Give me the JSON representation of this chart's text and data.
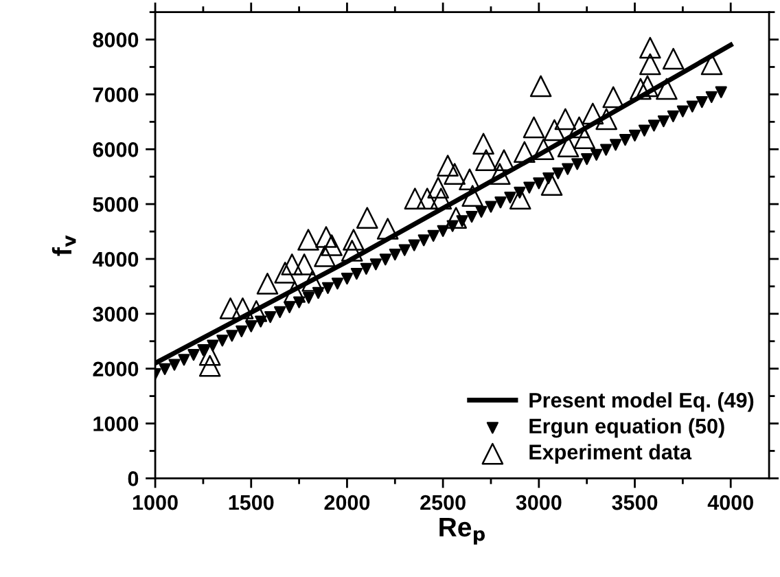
{
  "chart_data": {
    "type": "scatter",
    "xlabel": "Re$_{p}$",
    "ylabel": "f$_{v}$",
    "xlim": [
      1000,
      4200
    ],
    "ylim": [
      0,
      8500
    ],
    "xticks": [
      1000,
      1500,
      2000,
      2500,
      3000,
      3500,
      4000
    ],
    "yticks": [
      0,
      1000,
      2000,
      3000,
      4000,
      5000,
      6000,
      7000,
      8000
    ],
    "grid": false,
    "legend": "bottom right",
    "series": [
      {
        "name": "Present model Eq. (49)",
        "type": "line",
        "color": "#000000",
        "marker": "none",
        "line_style": "solid",
        "x": [
          1000,
          2000,
          3000,
          4000
        ],
        "values": [
          2100,
          3950,
          5900,
          7900
        ]
      },
      {
        "name": "Ergun equation (50)",
        "color": "#000000",
        "marker": "triangle_down",
        "x": [
          1000,
          1050,
          1100,
          1150,
          1200,
          1250,
          1300,
          1350,
          1400,
          1450,
          1500,
          1550,
          1600,
          1650,
          1700,
          1750,
          1800,
          1850,
          1900,
          1950,
          2000,
          2050,
          2100,
          2150,
          2200,
          2250,
          2300,
          2350,
          2400,
          2450,
          2500,
          2550,
          2600,
          2650,
          2700,
          2750,
          2800,
          2850,
          2900,
          2950,
          3000,
          3050,
          3100,
          3150,
          3200,
          3250,
          3300,
          3350,
          3400,
          3450,
          3500,
          3550,
          3600,
          3650,
          3700,
          3750,
          3800,
          3850,
          3900,
          3950
        ],
        "values": [
          1900,
          1990,
          2070,
          2160,
          2250,
          2340,
          2420,
          2510,
          2600,
          2680,
          2770,
          2860,
          2940,
          3030,
          3120,
          3210,
          3290,
          3380,
          3470,
          3550,
          3640,
          3730,
          3820,
          3900,
          3990,
          4080,
          4160,
          4250,
          4340,
          4420,
          4510,
          4600,
          4690,
          4770,
          4860,
          4950,
          5030,
          5120,
          5210,
          5300,
          5380,
          5470,
          5560,
          5640,
          5730,
          5820,
          5900,
          5990,
          6080,
          6170,
          6250,
          6340,
          6430,
          6510,
          6600,
          6690,
          6780,
          6860,
          6950,
          7040
        ]
      },
      {
        "name": "Experiment data",
        "color": "#000000",
        "marker": "triangle",
        "x": [
          1285,
          1285,
          1392,
          1456,
          1527,
          1585,
          1677,
          1713,
          1777,
          1727,
          1798,
          1820,
          1891,
          1920,
          1884,
          2026,
          2034,
          2105,
          2212,
          2354,
          2418,
          2475,
          2525,
          2561,
          2490,
          2568,
          2639,
          2654,
          2711,
          2725,
          2796,
          2818,
          2903,
          2925,
          2974,
          3010,
          3024,
          3067,
          3081,
          3138,
          3153,
          3210,
          3238,
          3281,
          3352,
          3388,
          3530,
          3566,
          3580,
          3580,
          3666,
          3701,
          3901
        ],
        "values": [
          2050,
          2250,
          3100,
          3100,
          3050,
          3550,
          3750,
          3900,
          3900,
          3400,
          4350,
          3600,
          4400,
          4250,
          4050,
          4150,
          4350,
          4750,
          4550,
          5100,
          5100,
          5300,
          5700,
          5550,
          5100,
          4750,
          5450,
          5150,
          6100,
          5800,
          5550,
          5800,
          5100,
          5950,
          6400,
          7150,
          6000,
          5350,
          6350,
          6550,
          6050,
          6400,
          6200,
          6650,
          6550,
          6950,
          7100,
          7150,
          7850,
          7550,
          7100,
          7650,
          7550
        ]
      }
    ]
  }
}
